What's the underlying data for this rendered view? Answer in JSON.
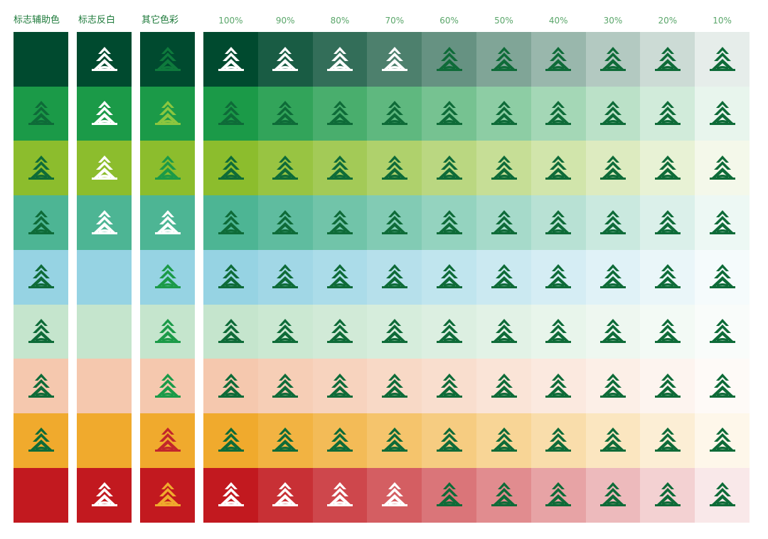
{
  "headers": {
    "left": [
      "标志辅助色",
      "标志反白",
      "其它色彩"
    ],
    "percents": [
      "100%",
      "90%",
      "80%",
      "70%",
      "60%",
      "50%",
      "40%",
      "30%",
      "20%",
      "10%"
    ]
  },
  "colors": {
    "logo_green": "#0e6b38",
    "white": "#ffffff"
  },
  "rows": [
    {
      "base": "#004a2f",
      "aux_icon": "none",
      "rev_icon": "#ffffff",
      "other_icon": "#0e7a3c",
      "pct_icon_dark": "#ffffff",
      "pct_icon_light": "#0e6b38",
      "white_cols": 4
    },
    {
      "base": "#1b9a48",
      "aux_icon": "#0e6b38",
      "rev_icon": "#ffffff",
      "other_icon": "#8cc63f",
      "pct_icon_dark": "#0e6b38",
      "pct_icon_light": "#0e6b38",
      "white_cols": 0
    },
    {
      "base": "#8cbd2d",
      "aux_icon": "#0e6b38",
      "rev_icon": "#ffffff",
      "other_icon": "#1b9a48",
      "pct_icon_dark": "#0e6b38",
      "pct_icon_light": "#0e6b38",
      "white_cols": 0
    },
    {
      "base": "#4db594",
      "aux_icon": "#0e6b38",
      "rev_icon": "#ffffff",
      "other_icon": "#ffffff",
      "pct_icon_dark": "#0e6b38",
      "pct_icon_light": "#0e6b38",
      "white_cols": 0
    },
    {
      "base": "#96d3e3",
      "aux_icon": "#0e6b38",
      "rev_icon": "none",
      "other_icon": "#1b9a48",
      "pct_icon_dark": "#0e6b38",
      "pct_icon_light": "#0e6b38",
      "white_cols": 0
    },
    {
      "base": "#c5e5cd",
      "aux_icon": "#0e6b38",
      "rev_icon": "none",
      "other_icon": "#1b9a48",
      "pct_icon_dark": "#0e6b38",
      "pct_icon_light": "#0e6b38",
      "white_cols": 0
    },
    {
      "base": "#f5c8ae",
      "aux_icon": "#0e6b38",
      "rev_icon": "none",
      "other_icon": "#1b9a48",
      "pct_icon_dark": "#0e6b38",
      "pct_icon_light": "#0e6b38",
      "white_cols": 0
    },
    {
      "base": "#f0aa2d",
      "aux_icon": "#0e6b38",
      "rev_icon": "none",
      "other_icon": "#c2262b",
      "pct_icon_dark": "#0e6b38",
      "pct_icon_light": "#0e6b38",
      "white_cols": 0
    },
    {
      "base": "#c2191f",
      "aux_icon": "none",
      "rev_icon": "#ffffff",
      "other_icon": "#f0aa2d",
      "pct_icon_dark": "#ffffff",
      "pct_icon_light": "#0e6b38",
      "white_cols": 4
    }
  ]
}
